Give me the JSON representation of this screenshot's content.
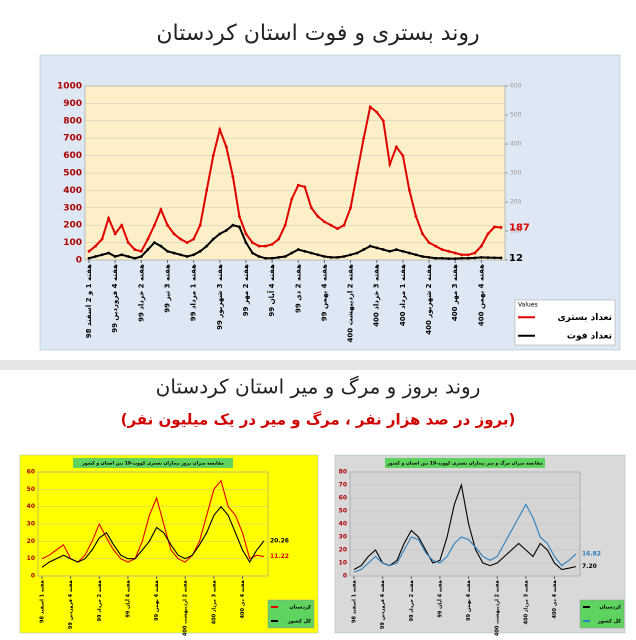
{
  "header": {
    "title1": "روند بستری و فوت استان کردستان",
    "title2": "روند بروز و مرگ و میر استان کردستان",
    "subtitle": "(بروز در صد هزار نفر ، مرگ و میر در یک میلیون نفر)"
  },
  "chart_data": [
    {
      "type": "line",
      "legend_title": "Values",
      "categories": [
        "هفته 1 و 2 اسفند 98",
        null,
        null,
        null,
        "هفته 4 فروردین 99",
        null,
        null,
        null,
        "هفته 2 خرداد 99",
        null,
        null,
        null,
        "هفته 3 تیر 99",
        null,
        null,
        null,
        "هفته 1 مرداد 99",
        null,
        null,
        null,
        "هفته 3 شهریور 99",
        null,
        null,
        null,
        "هفته 2 مهر 99",
        null,
        null,
        null,
        "هفته 4 آبان 99",
        null,
        null,
        null,
        "هفته 2 دی 99",
        null,
        null,
        null,
        "هفته 4 بهمن 99",
        null,
        null,
        null,
        "هفته 2 اردیبهشت 400",
        null,
        null,
        null,
        "هفته 3 خرداد 400",
        null,
        null,
        null,
        "هفته 1 مرداد 400",
        null,
        null,
        null,
        "هفته 2 شهریور 400",
        null,
        null,
        null,
        "هفته 3 مهر 400",
        null,
        null,
        null,
        "هفته 4 بهمن 400",
        null,
        null,
        null
      ],
      "series": [
        {
          "name": "تعداد بستری",
          "color": "#e00000",
          "values": [
            50,
            80,
            120,
            240,
            150,
            200,
            100,
            60,
            50,
            120,
            200,
            290,
            200,
            150,
            120,
            100,
            120,
            200,
            400,
            600,
            750,
            650,
            480,
            250,
            150,
            100,
            80,
            80,
            90,
            120,
            200,
            350,
            430,
            420,
            300,
            250,
            220,
            200,
            180,
            200,
            300,
            500,
            700,
            880,
            850,
            800,
            550,
            650,
            600,
            400,
            250,
            150,
            100,
            80,
            60,
            50,
            40,
            30,
            30,
            40,
            80,
            150,
            190,
            187
          ]
        },
        {
          "name": "تعداد فوت",
          "color": "#000000",
          "values": [
            10,
            20,
            30,
            40,
            20,
            30,
            20,
            10,
            20,
            60,
            100,
            80,
            50,
            40,
            30,
            20,
            30,
            50,
            80,
            120,
            150,
            170,
            200,
            190,
            100,
            40,
            20,
            10,
            10,
            15,
            20,
            40,
            60,
            50,
            40,
            30,
            20,
            15,
            15,
            20,
            30,
            40,
            60,
            80,
            70,
            60,
            50,
            60,
            50,
            40,
            30,
            20,
            15,
            10,
            10,
            8,
            8,
            10,
            10,
            12,
            15,
            14,
            13,
            12
          ]
        }
      ],
      "ylim": [
        0,
        1000
      ],
      "yticks": [
        0,
        100,
        200,
        300,
        400,
        500,
        600,
        700,
        800,
        900,
        1000
      ],
      "y2lim": [
        0,
        600
      ],
      "y2ticks": [
        0,
        100,
        200,
        300,
        400,
        500,
        600
      ],
      "grid": true
    },
    {
      "type": "line",
      "title": "مقایسه میزان بروز بیماران بستری کووید-19 بین استان و کشور",
      "categories": [
        "هفته 1 اسفند 98",
        null,
        null,
        null,
        "هفته 4 فروردین 99",
        null,
        null,
        null,
        "هفته 2 خرداد 99",
        null,
        null,
        null,
        "هفته 4 آبان 99",
        null,
        null,
        null,
        "هفته 4 بهمن 99",
        null,
        null,
        null,
        "هفته 2 اردیبهشت 400",
        null,
        null,
        null,
        "هفته 3 مرداد 400",
        null,
        null,
        null,
        "هفته 4 دی 400",
        null,
        null,
        null
      ],
      "series": [
        {
          "name": "کردستان",
          "color": "#e00000",
          "values": [
            10,
            12,
            15,
            18,
            10,
            8,
            12,
            20,
            30,
            22,
            15,
            10,
            8,
            10,
            20,
            35,
            45,
            30,
            15,
            10,
            8,
            12,
            20,
            35,
            50,
            55,
            40,
            35,
            25,
            10,
            12,
            11.22
          ]
        },
        {
          "name": "کل کشور",
          "color": "#000000",
          "values": [
            5,
            8,
            10,
            12,
            10,
            8,
            10,
            15,
            22,
            25,
            18,
            12,
            10,
            10,
            15,
            20,
            28,
            25,
            18,
            12,
            10,
            12,
            18,
            25,
            35,
            40,
            35,
            25,
            15,
            8,
            15,
            20.26
          ]
        }
      ],
      "ylim": [
        0,
        60
      ],
      "yticks": [
        0,
        10,
        20,
        30,
        40,
        50,
        60
      ],
      "grid": true
    },
    {
      "type": "line",
      "title": "مقایسه میزان مرگ و میر بیماران بستری کووید-19 بین استان و کشور",
      "categories": [
        "هفته 1 اسفند 98",
        null,
        null,
        null,
        "هفته 4 فروردین 99",
        null,
        null,
        null,
        "هفته 2 خرداد 99",
        null,
        null,
        null,
        "هفته 4 آبان 99",
        null,
        null,
        null,
        "هفته 4 بهمن 99",
        null,
        null,
        null,
        "هفته 2 اردیبهشت 400",
        null,
        null,
        null,
        "هفته 3 مرداد 400",
        null,
        null,
        null,
        "هفته 4 دی 400",
        null,
        null,
        null
      ],
      "series": [
        {
          "name": "کردستان",
          "color": "#000000",
          "values": [
            5,
            8,
            15,
            20,
            10,
            8,
            12,
            25,
            35,
            30,
            20,
            10,
            12,
            30,
            55,
            70,
            40,
            20,
            10,
            8,
            10,
            15,
            20,
            25,
            20,
            15,
            25,
            20,
            10,
            5,
            6,
            7.2
          ],
          "value_labels": [
            null,
            null,
            null,
            null,
            null,
            null,
            null,
            null,
            null,
            null,
            null,
            null,
            null,
            null,
            null,
            null,
            null,
            null,
            null,
            null,
            null,
            null,
            null,
            null,
            null,
            null,
            null,
            null,
            null,
            null,
            null,
            "7.20"
          ]
        },
        {
          "name": "کل کشور",
          "color": "#2a7fc0",
          "values": [
            3,
            5,
            10,
            15,
            10,
            8,
            10,
            20,
            30,
            28,
            18,
            12,
            10,
            15,
            25,
            30,
            28,
            22,
            15,
            12,
            15,
            25,
            35,
            45,
            55,
            45,
            30,
            25,
            15,
            8,
            12,
            16.82
          ]
        }
      ],
      "ylim": [
        0,
        80
      ],
      "yticks": [
        0,
        10,
        20,
        30,
        40,
        50,
        60,
        70,
        80
      ],
      "grid": true
    }
  ]
}
